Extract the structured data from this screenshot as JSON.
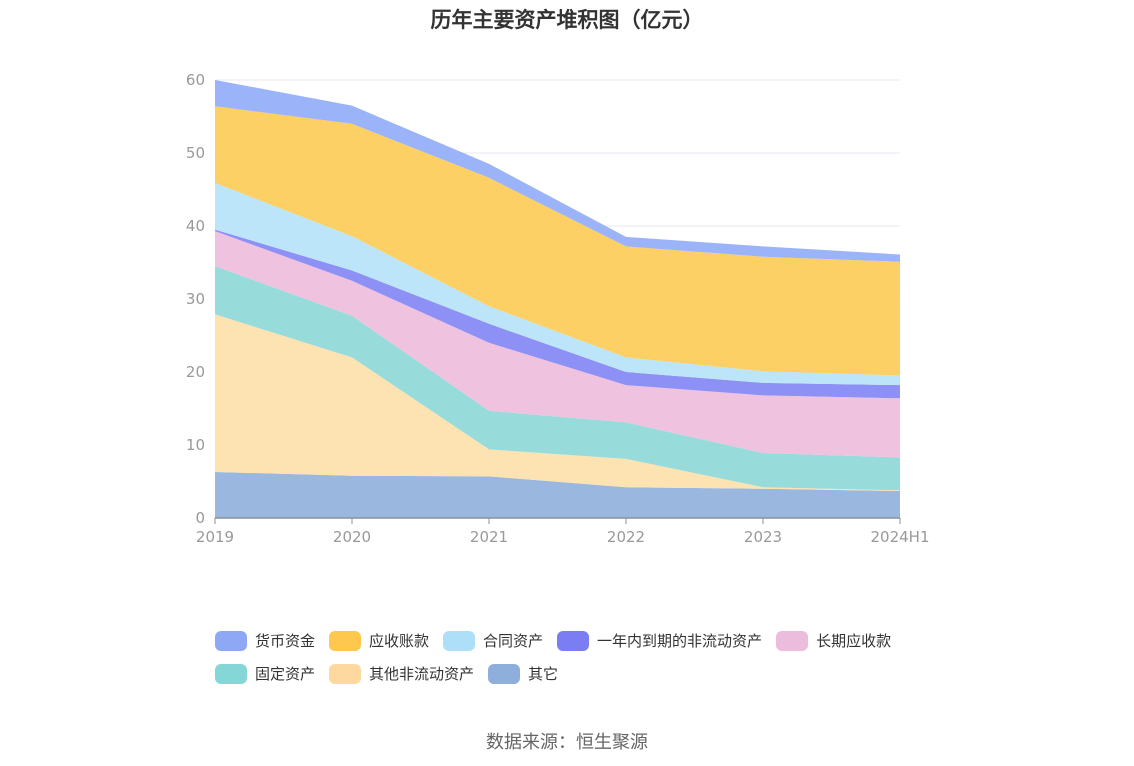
{
  "chart_data": {
    "type": "area",
    "stacked": true,
    "title": "历年主要资产堆积图（亿元）",
    "categories": [
      "2019",
      "2020",
      "2021",
      "2022",
      "2023",
      "2024H1"
    ],
    "ylim": [
      0,
      60
    ],
    "yticks": [
      "0",
      "10",
      "20",
      "30",
      "40",
      "50",
      "60"
    ],
    "grid": true,
    "legend_position": "bottom",
    "series": [
      {
        "name": "其它",
        "color": "#8eafdc",
        "values": [
          6.3,
          5.8,
          5.7,
          4.2,
          4.0,
          3.7
        ]
      },
      {
        "name": "其他非流动资产",
        "color": "#fde0a8",
        "values": [
          21.6,
          16.2,
          3.7,
          3.9,
          0.2,
          0.1
        ]
      },
      {
        "name": "固定资产",
        "color": "#8dd7d7",
        "values": [
          6.6,
          5.7,
          5.3,
          5.0,
          4.7,
          4.5
        ]
      },
      {
        "name": "长期应收款",
        "color": "#edbcdc",
        "values": [
          4.8,
          4.8,
          9.3,
          5.1,
          7.9,
          8.1
        ]
      },
      {
        "name": "一年内到期的非流动资产",
        "color": "#8184f3",
        "values": [
          0.2,
          1.4,
          2.6,
          1.8,
          1.7,
          1.8
        ]
      },
      {
        "name": "合同资产",
        "color": "#b6e2f8",
        "values": [
          6.4,
          4.7,
          2.4,
          2.0,
          1.6,
          1.3
        ]
      },
      {
        "name": "应收账款",
        "color": "#fdcb55",
        "values": [
          10.5,
          15.4,
          17.6,
          15.2,
          15.7,
          15.6
        ]
      },
      {
        "name": "货币资金",
        "color": "#90abf7",
        "values": [
          3.6,
          2.5,
          1.9,
          1.3,
          1.4,
          1.0
        ]
      }
    ]
  },
  "legend": [
    {
      "name": "货币资金",
      "color": "#8ea8f6"
    },
    {
      "name": "应收账款",
      "color": "#fdc84d"
    },
    {
      "name": "合同资产",
      "color": "#ade0f8"
    },
    {
      "name": "一年内到期的非流动资产",
      "color": "#7b7ef2"
    },
    {
      "name": "长期应收款",
      "color": "#ecbcdc"
    },
    {
      "name": "固定资产",
      "color": "#85d6d6"
    },
    {
      "name": "其他非流动资产",
      "color": "#fdd9a0"
    },
    {
      "name": "其它",
      "color": "#8eafdc"
    }
  ],
  "source": "数据来源：恒生聚源"
}
